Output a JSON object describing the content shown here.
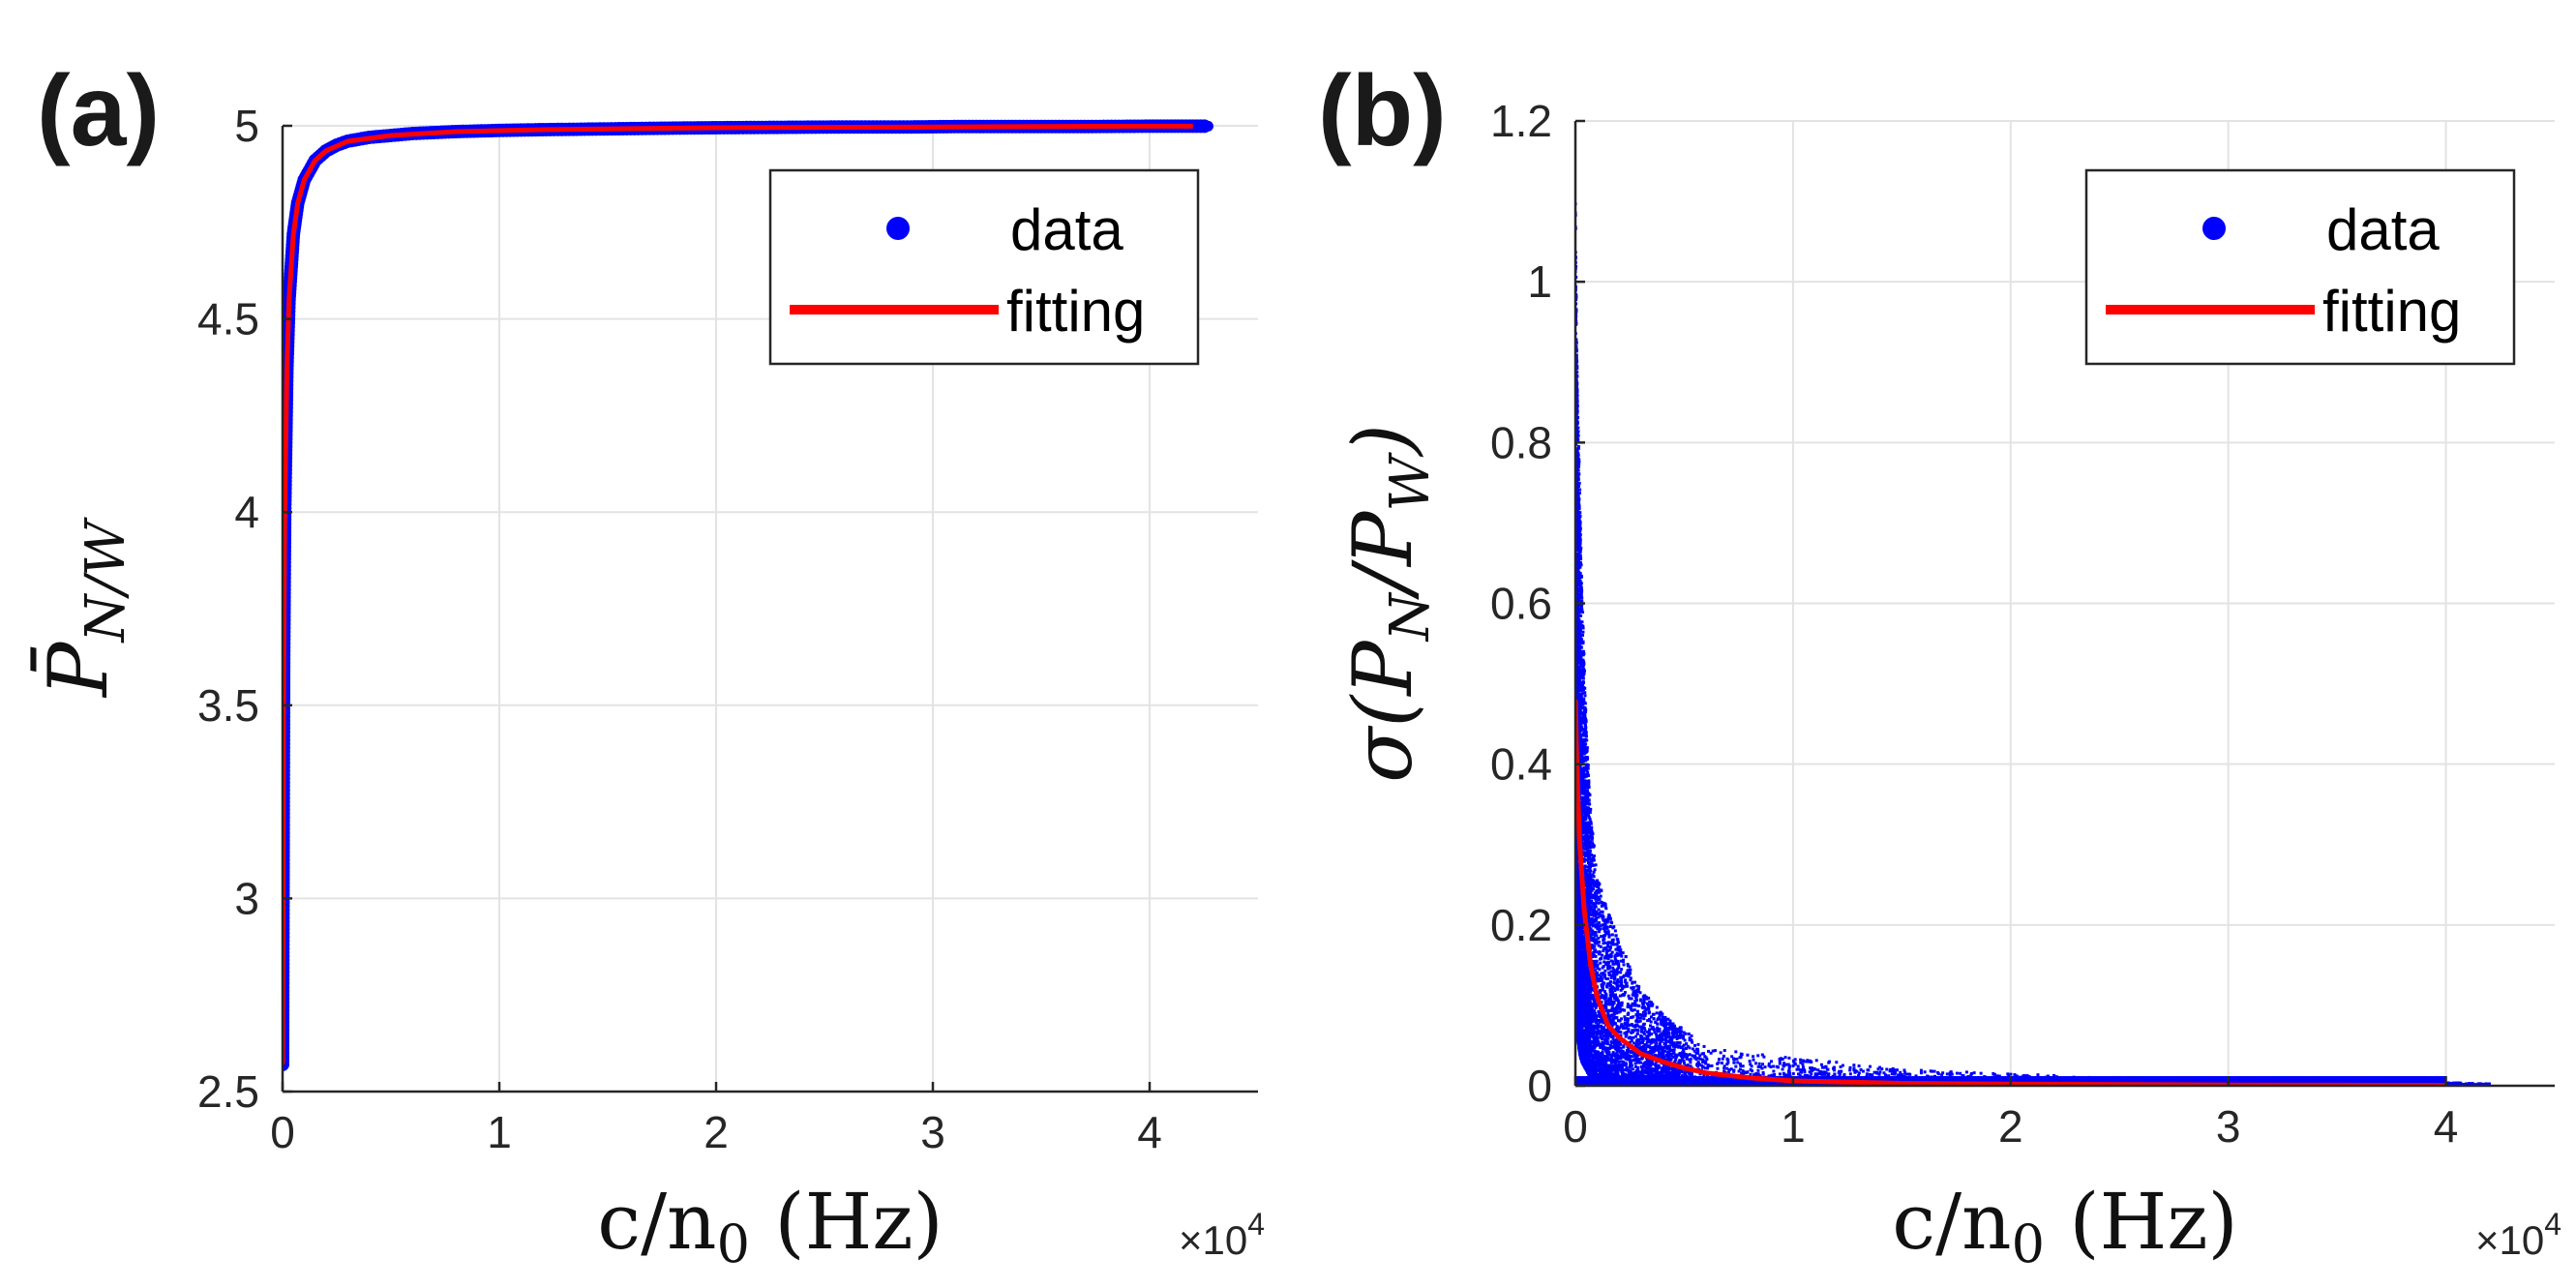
{
  "figure": {
    "panels": [
      "(a)",
      "(b)"
    ]
  },
  "chart_data": [
    {
      "type": "scatter",
      "panel_label": "(a)",
      "xlabel": "c/n0 (Hz)",
      "x_multiplier": "×10^4",
      "ylabel": "P̄ N/W",
      "xlim": [
        0,
        45000
      ],
      "ylim": [
        2.5,
        5
      ],
      "xticks": [
        0,
        10000,
        20000,
        30000,
        40000
      ],
      "xtick_labels": [
        "0",
        "1",
        "2",
        "3",
        "4"
      ],
      "yticks": [
        2.5,
        3,
        3.5,
        4,
        4.5,
        5
      ],
      "ytick_labels": [
        "2.5",
        "3",
        "3.5",
        "4",
        "4.5",
        "5"
      ],
      "grid": true,
      "legend": {
        "position": "top-right",
        "entries": [
          "data",
          "fitting"
        ]
      },
      "series": [
        {
          "name": "data",
          "kind": "points",
          "color": "#0000ff",
          "x": [
            0,
            50,
            100,
            200,
            300,
            500,
            700,
            1000,
            1500,
            2000,
            2500,
            3000,
            4000,
            5000,
            6000,
            8000,
            10000,
            12000,
            15000,
            18000,
            20000,
            23000,
            26000,
            29000,
            31000,
            33000,
            35000,
            37000,
            40000,
            41000,
            42000,
            42700
          ],
          "y": [
            2.57,
            3.6,
            4.0,
            4.37,
            4.55,
            4.72,
            4.8,
            4.86,
            4.91,
            4.935,
            4.95,
            4.96,
            4.97,
            4.975,
            4.98,
            4.985,
            4.988,
            4.99,
            4.992,
            4.994,
            4.995,
            4.996,
            4.997,
            4.997,
            4.998,
            4.998,
            4.998,
            4.998,
            4.999,
            4.999,
            4.999,
            4.999
          ]
        },
        {
          "name": "fitting",
          "kind": "line",
          "color": "#ff0000",
          "x": [
            0,
            50,
            100,
            200,
            300,
            500,
            700,
            1000,
            1500,
            2000,
            3000,
            5000,
            8000,
            12000,
            20000,
            30000,
            40000,
            42000
          ],
          "y": [
            2.57,
            3.6,
            4.0,
            4.37,
            4.55,
            4.72,
            4.8,
            4.86,
            4.91,
            4.935,
            4.96,
            4.975,
            4.985,
            4.99,
            4.995,
            4.997,
            4.999,
            4.999
          ]
        }
      ]
    },
    {
      "type": "scatter",
      "panel_label": "(b)",
      "xlabel": "c/n0 (Hz)",
      "x_multiplier": "×10^4",
      "ylabel": "σ(P N/P W)",
      "xlim": [
        0,
        45000
      ],
      "ylim": [
        0,
        1.2
      ],
      "xticks": [
        0,
        10000,
        20000,
        30000,
        40000
      ],
      "xtick_labels": [
        "0",
        "1",
        "2",
        "3",
        "4"
      ],
      "yticks": [
        0,
        0.2,
        0.4,
        0.6,
        0.8,
        1,
        1.2
      ],
      "ytick_labels": [
        "0",
        "0.2",
        "0.4",
        "0.6",
        "0.8",
        "1",
        "1.2"
      ],
      "grid": true,
      "legend": {
        "position": "top-right",
        "entries": [
          "data",
          "fitting"
        ]
      },
      "series": [
        {
          "name": "data",
          "kind": "points",
          "color": "#0000ff",
          "x": [
            0,
            50,
            100,
            200,
            300,
            500,
            700,
            1000,
            1500,
            2000,
            3000,
            4000,
            5000,
            6000,
            8000,
            10000,
            12000,
            15000,
            20000,
            25000,
            30000,
            35000,
            40000,
            42000
          ],
          "y_max": [
            1.12,
            0.95,
            0.85,
            0.75,
            0.62,
            0.45,
            0.35,
            0.26,
            0.22,
            0.18,
            0.12,
            0.09,
            0.07,
            0.05,
            0.04,
            0.035,
            0.03,
            0.02,
            0.015,
            0.01,
            0.007,
            0.005,
            0.004,
            0.003
          ],
          "y_min": [
            0.1,
            0.08,
            0.06,
            0.04,
            0.03,
            0.02,
            0.01,
            0.005,
            0.003,
            0.002,
            0.001,
            0,
            0,
            0,
            0,
            0,
            0,
            0,
            0,
            0,
            0,
            0,
            0,
            0
          ]
        },
        {
          "name": "fitting",
          "kind": "line",
          "color": "#ff0000",
          "x": [
            0,
            50,
            100,
            200,
            400,
            700,
            1000,
            1500,
            2000,
            3000,
            4000,
            5000,
            6000,
            8000,
            10000,
            15000,
            20000,
            30000,
            40000
          ],
          "y": [
            0.48,
            0.42,
            0.37,
            0.3,
            0.22,
            0.15,
            0.11,
            0.075,
            0.06,
            0.04,
            0.03,
            0.022,
            0.016,
            0.01,
            0.006,
            0.003,
            0.002,
            0.001,
            0.0005
          ]
        }
      ]
    }
  ]
}
